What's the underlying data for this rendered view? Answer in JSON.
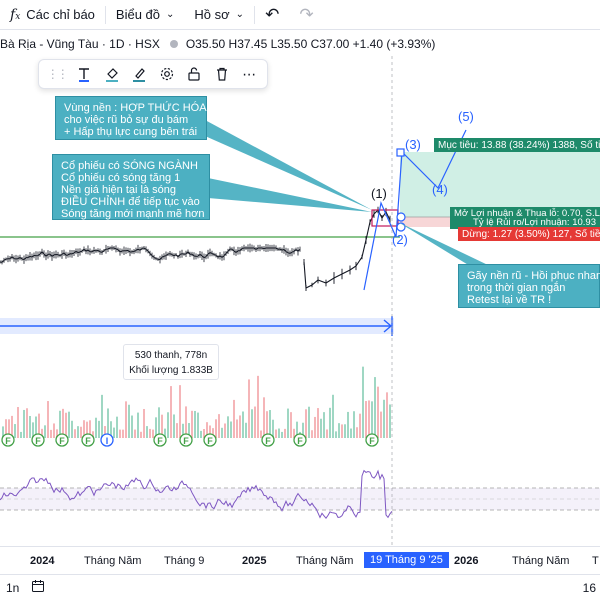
{
  "topbar": {
    "indicators_icon": "fx-icon",
    "indicators_label": "Các chỉ báo",
    "charts_label": "Biểu đồ",
    "profile_label": "Hồ sơ",
    "undo_icon": "undo-icon",
    "redo_icon": "redo-icon"
  },
  "symbol": {
    "name": "Bà Rịa - Vũng Tàu · 1D · HSX",
    "ohlc": "O35.50  H37.45  L35.50  C37.00  +1.40 (+3.93%)"
  },
  "drawing_toolbar": [
    "grip-icon",
    "text-icon",
    "fill-color-icon",
    "line-color-icon",
    "settings-icon",
    "unlock-icon",
    "delete-icon",
    "more-icon"
  ],
  "callouts": {
    "c1": [
      "Vùng nền : HỢP THỨC HÓA",
      "cho việc rũ bỏ sự đu bám",
      "+ Hấp thụ lực cung bên trái"
    ],
    "c2": [
      "Cổ phiếu có SÓNG NGÀNH",
      "Cổ phiếu có sóng tăng 1",
      "Nền giá hiện tại là sóng",
      "ĐIỀU CHỈNH để tiếp tục vào",
      "Sóng tăng mới mạnh mẽ hơn"
    ],
    "c3": [
      "Gãy nền rũ - Hồi phục nhanh",
      "trong thời gian ngắn",
      "Retest lại về TR !"
    ]
  },
  "waves": [
    "(1)",
    "(2)",
    "(3)",
    "(4)",
    "(5)"
  ],
  "position_tags": {
    "target": "Mục tiêu: 13.88 (38.24%) 1388, Số tiền:",
    "pl_line1": "Mở Lợi nhuận & Thua lỗ: 0.70, S.Lg",
    "pl_line2": "Tỷ lệ Rủi ro/Lợi nhuận: 10.93",
    "stop": "Dừng: 1.27 (3.50%) 127, Số tiền:"
  },
  "volume_info": {
    "bars": "530 thanh, 778n",
    "volume": "Khối lượng 1.833B"
  },
  "event_markers": [
    "F",
    "F",
    "F",
    "F",
    "I",
    "F",
    "F",
    "F",
    "F",
    "F",
    "F"
  ],
  "time_axis": [
    "2024",
    "Tháng Năm",
    "Tháng 9",
    "2025",
    "Tháng Năm",
    "19 Tháng 9 '25",
    "2026",
    "Tháng Năm",
    "T"
  ],
  "bottombar": {
    "interval": "1n",
    "calendar_icon": "calendar-icon",
    "right_text": "16"
  },
  "colors": {
    "accent": "#2962ff",
    "callout": "#4cb0c2",
    "profit": "#1e8a6a",
    "stop": "#e53935",
    "rsi": "#7e57c2"
  }
}
